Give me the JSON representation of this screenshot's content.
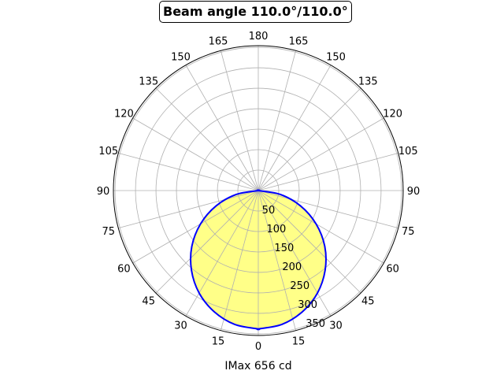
{
  "chart_data": {
    "type": "polar-area",
    "title": "Beam angle 110.0°/110.0°",
    "xlabel": "IMax 656 cd",
    "angle_ticks": [
      0,
      15,
      30,
      45,
      60,
      75,
      90,
      105,
      120,
      135,
      150,
      165,
      180
    ],
    "angle_tick_labels_right": [
      "0",
      "15",
      "30",
      "45",
      "60",
      "75",
      "90",
      "105",
      "120",
      "135",
      "150",
      "165",
      "180"
    ],
    "angle_tick_labels_left": [
      "15",
      "30",
      "45",
      "60",
      "75",
      "90",
      "105",
      "120",
      "135",
      "150",
      "165"
    ],
    "r_ticks": [
      50,
      100,
      150,
      200,
      250,
      300,
      350
    ],
    "r_tick_labels": [
      "50",
      "100",
      "150",
      "200",
      "250",
      "300",
      "350"
    ],
    "rlim": [
      0,
      354
    ],
    "grid": true,
    "zero_location": "bottom",
    "series": [
      {
        "theta_deg": [
          0,
          10,
          20,
          30,
          40,
          50,
          60,
          70,
          80,
          90
        ],
        "r": [
          338,
          332,
          315,
          289,
          254,
          212,
          163,
          110,
          55,
          0
        ],
        "symmetric": true,
        "line_color": "#0000ff",
        "fill_color": "#ffff88"
      }
    ]
  }
}
